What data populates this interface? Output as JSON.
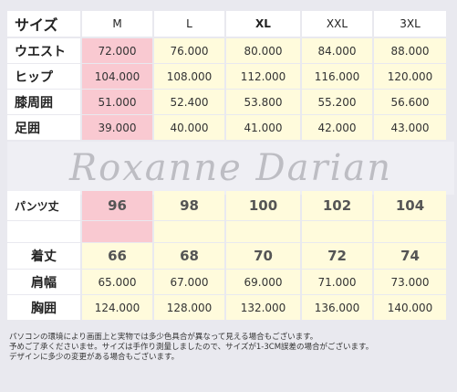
{
  "header": {
    "label": "サイズ",
    "sizes": [
      "M",
      "L",
      "XL",
      "XXL",
      "3XL"
    ]
  },
  "rows_top": [
    {
      "label": "ウエスト",
      "values": [
        "72.000",
        "76.000",
        "80.000",
        "84.000",
        "88.000"
      ]
    },
    {
      "label": "ヒップ",
      "values": [
        "104.000",
        "108.000",
        "112.000",
        "116.000",
        "120.000"
      ]
    },
    {
      "label": "膝周囲",
      "values": [
        "51.000",
        "52.400",
        "53.800",
        "55.200",
        "56.600"
      ]
    },
    {
      "label": "足囲",
      "values": [
        "39.000",
        "40.000",
        "41.000",
        "42.000",
        "43.000"
      ]
    }
  ],
  "watermark": "Roxanne Darian",
  "rows_bottom": [
    {
      "label": "パンツ丈",
      "values": [
        "96",
        "98",
        "100",
        "102",
        "104"
      ]
    },
    {
      "label": "着丈",
      "values": [
        "66",
        "68",
        "70",
        "72",
        "74"
      ]
    },
    {
      "label": "肩幅",
      "values": [
        "65.000",
        "67.000",
        "69.000",
        "71.000",
        "73.000"
      ]
    },
    {
      "label": "胸囲",
      "values": [
        "124.000",
        "128.000",
        "132.000",
        "136.000",
        "140.000"
      ]
    }
  ],
  "notes": [
    "パソコンの環境により画面上と実物では多少色具合が異なって見える場合もございます。",
    "予めご了承くださいませ。サイズは手作り測量しましたので、サイズが1-3CM誤差の場合がございます。",
    "デザインに多少の変更がある場合もございます。"
  ],
  "colors": {
    "m_column": "#f9c9d1",
    "other_columns": "#fffbdc",
    "frame": "#e9e9ef"
  }
}
